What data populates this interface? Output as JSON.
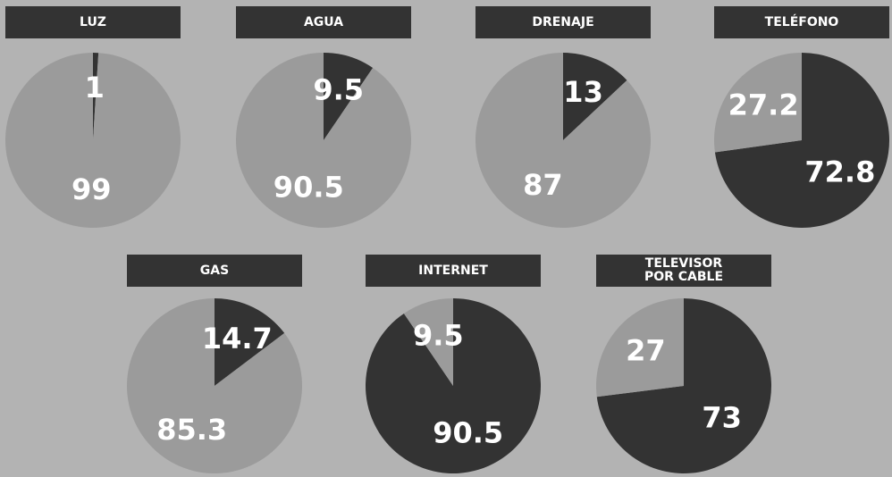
{
  "chart_data": [
    {
      "type": "pie",
      "title": "LUZ",
      "values": [
        1,
        99
      ],
      "colors": [
        "#333333",
        "#9b9b9b"
      ]
    },
    {
      "type": "pie",
      "title": "AGUA",
      "values": [
        9.5,
        90.5
      ],
      "colors": [
        "#333333",
        "#9b9b9b"
      ]
    },
    {
      "type": "pie",
      "title": "DRENAJE",
      "values": [
        13,
        87
      ],
      "colors": [
        "#333333",
        "#9b9b9b"
      ]
    },
    {
      "type": "pie",
      "title": "TELÉFONO",
      "values": [
        72.8,
        27.2
      ],
      "colors": [
        "#333333",
        "#9b9b9b"
      ]
    },
    {
      "type": "pie",
      "title": "GAS",
      "values": [
        14.7,
        85.3
      ],
      "colors": [
        "#333333",
        "#9b9b9b"
      ]
    },
    {
      "type": "pie",
      "title": "INTERNET",
      "values": [
        90.5,
        9.5
      ],
      "colors": [
        "#333333",
        "#9b9b9b"
      ]
    },
    {
      "type": "pie",
      "title": "TELEVISOR\nPOR CABLE",
      "values": [
        73,
        27
      ],
      "colors": [
        "#333333",
        "#9b9b9b"
      ]
    }
  ]
}
